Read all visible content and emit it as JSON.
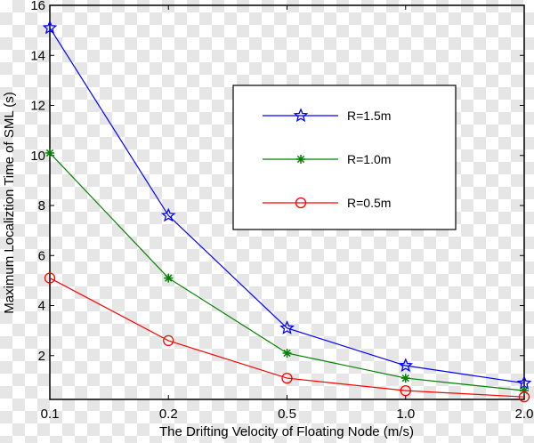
{
  "chart_data": {
    "type": "line",
    "title": "",
    "xlabel": "The Drifting Velocity of Floating Node (m/s)",
    "ylabel": "Maximum Localiztion Time of SML (s)",
    "categories": [
      "0.1",
      "0.2",
      "0.5",
      "1.0",
      "2.0"
    ],
    "yticks": [
      2,
      4,
      6,
      8,
      10,
      12,
      14,
      16
    ],
    "ylim": [
      0.25,
      16
    ],
    "grid": false,
    "legend_placement": "upper-center-right",
    "series": [
      {
        "name": "R=1.5m",
        "color": "#0000ff",
        "marker": "star",
        "values": [
          15.1,
          7.6,
          3.1,
          1.6,
          0.9
        ]
      },
      {
        "name": "R=1.0m",
        "color": "#008000",
        "marker": "asterisk",
        "values": [
          10.1,
          5.1,
          2.1,
          1.1,
          0.6
        ]
      },
      {
        "name": "R=0.5m",
        "color": "#ff0000",
        "marker": "circle",
        "values": [
          5.1,
          2.6,
          1.1,
          0.6,
          0.35
        ]
      }
    ]
  }
}
